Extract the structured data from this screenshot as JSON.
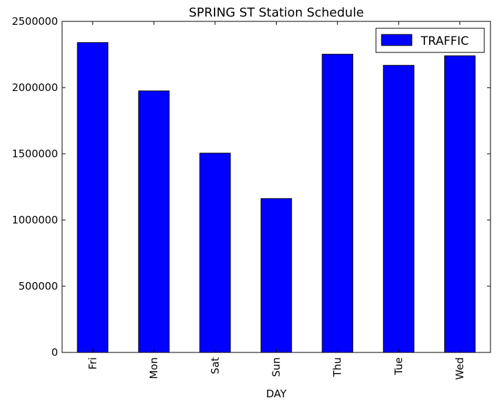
{
  "chart_data": {
    "type": "bar",
    "title": "SPRING ST Station Schedule",
    "xlabel": "DAY",
    "ylabel": "",
    "categories": [
      "Fri",
      "Mon",
      "Sat",
      "Sun",
      "Thu",
      "Tue",
      "Wed"
    ],
    "series": [
      {
        "name": "TRAFFIC",
        "values": [
          2340000,
          1975000,
          1505000,
          1162000,
          2252000,
          2168000,
          2240000
        ],
        "color": "#0000ff"
      }
    ],
    "ylim": [
      0,
      2500000
    ],
    "yticks": [
      0,
      500000,
      1000000,
      1500000,
      2000000,
      2500000
    ],
    "ytick_labels": [
      "0",
      "500000",
      "1000000",
      "1500000",
      "2000000",
      "2500000"
    ],
    "legend_position": "top-right",
    "grid": false
  }
}
